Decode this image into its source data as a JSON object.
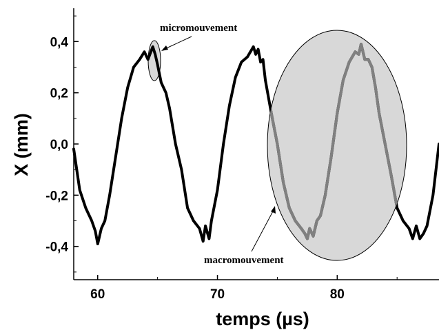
{
  "chart_data": {
    "type": "line",
    "title": "",
    "xlabel": "temps (µs)",
    "ylabel": "X (mm)",
    "xlim": [
      58,
      88.5
    ],
    "ylim": [
      -0.53,
      0.53
    ],
    "x_ticks": [
      60,
      70,
      80
    ],
    "x_tick_labels": [
      "60",
      "70",
      "80"
    ],
    "y_ticks": [
      -0.4,
      -0.2,
      0.0,
      0.2,
      0.4
    ],
    "y_tick_labels": [
      "-0,4",
      "-0,2",
      "0,0",
      "0,2",
      "0,4"
    ],
    "grid": false,
    "legend": "none",
    "series": [
      {
        "x": [
          58.0,
          58.5,
          59.0,
          59.5,
          59.8,
          60.0,
          60.3,
          60.6,
          61.0,
          61.5,
          62.0,
          62.5,
          63.0,
          63.5,
          63.9,
          64.2,
          64.6,
          64.8,
          65.0,
          65.3,
          65.7,
          66.0,
          66.5,
          67.0,
          67.5,
          68.0,
          68.5,
          68.8,
          69.0,
          69.3,
          69.5,
          70.0,
          70.5,
          71.0,
          71.5,
          72.0,
          72.5,
          73.0,
          73.2,
          73.4,
          73.6,
          73.8,
          74.0,
          74.5,
          75.0,
          75.5,
          76.0,
          76.5,
          77.0,
          77.3,
          77.5,
          77.7,
          78.0,
          78.3,
          78.6,
          79.0,
          79.5,
          80.0,
          80.5,
          81.0,
          81.5,
          81.8,
          82.0,
          82.3,
          82.6,
          82.9,
          83.2,
          83.5,
          84.0,
          84.5,
          85.0,
          85.5,
          86.0,
          86.3,
          86.6,
          86.9,
          87.2,
          87.5,
          88.0,
          88.5
        ],
        "y": [
          -0.02,
          -0.18,
          -0.25,
          -0.3,
          -0.34,
          -0.39,
          -0.33,
          -0.3,
          -0.2,
          -0.05,
          0.1,
          0.22,
          0.3,
          0.33,
          0.36,
          0.33,
          0.38,
          0.35,
          0.31,
          0.24,
          0.2,
          0.14,
          0.0,
          -0.1,
          -0.25,
          -0.3,
          -0.33,
          -0.38,
          -0.32,
          -0.37,
          -0.3,
          -0.18,
          0.0,
          0.15,
          0.26,
          0.32,
          0.34,
          0.38,
          0.35,
          0.37,
          0.32,
          0.33,
          0.25,
          0.12,
          0.0,
          -0.15,
          -0.25,
          -0.3,
          -0.33,
          -0.35,
          -0.37,
          -0.33,
          -0.36,
          -0.3,
          -0.28,
          -0.2,
          -0.05,
          0.12,
          0.25,
          0.32,
          0.36,
          0.35,
          0.39,
          0.33,
          0.33,
          0.3,
          0.22,
          0.12,
          0.0,
          -0.12,
          -0.25,
          -0.3,
          -0.33,
          -0.37,
          -0.32,
          -0.37,
          -0.35,
          -0.32,
          -0.2,
          0.0
        ]
      }
    ],
    "annotations": [
      {
        "text": "micromouvement"
      },
      {
        "text": "macromouvement"
      }
    ]
  }
}
